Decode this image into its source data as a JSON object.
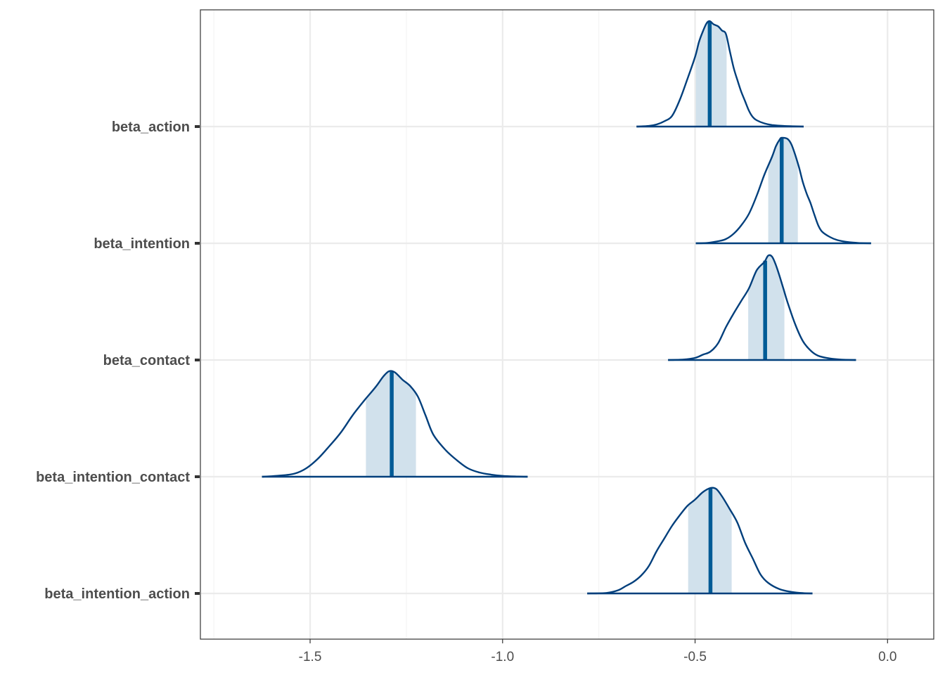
{
  "chart_data": {
    "type": "area",
    "chart_kind": "posterior-density-ridges",
    "title": "",
    "xlabel": "",
    "ylabel": "",
    "xlim": [
      -1.785,
      0.12
    ],
    "x_ticks": [
      -1.5,
      -1.0,
      -0.5,
      0.0
    ],
    "x_tick_labels": [
      "-1.5",
      "-1.0",
      "-0.5",
      "0.0"
    ],
    "grid": true,
    "legend": "none",
    "colors": {
      "line": "#013f7c",
      "interval_fill": "#d1e1ec",
      "median": "#005b96"
    },
    "series": [
      {
        "name": "beta_action",
        "median": -0.462,
        "interval": [
          -0.498,
          -0.418
        ],
        "density": [
          [
            -0.652,
            0.0
          ],
          [
            -0.62,
            0.006
          ],
          [
            -0.6,
            0.02
          ],
          [
            -0.58,
            0.05
          ],
          [
            -0.56,
            0.1
          ],
          [
            -0.54,
            0.25
          ],
          [
            -0.52,
            0.45
          ],
          [
            -0.5,
            0.66
          ],
          [
            -0.49,
            0.8
          ],
          [
            -0.48,
            0.9
          ],
          [
            -0.47,
            0.98
          ],
          [
            -0.462,
            1.0
          ],
          [
            -0.452,
            0.97
          ],
          [
            -0.44,
            0.95
          ],
          [
            -0.43,
            0.91
          ],
          [
            -0.42,
            0.88
          ],
          [
            -0.41,
            0.72
          ],
          [
            -0.4,
            0.56
          ],
          [
            -0.39,
            0.44
          ],
          [
            -0.38,
            0.33
          ],
          [
            -0.37,
            0.24
          ],
          [
            -0.36,
            0.15
          ],
          [
            -0.35,
            0.09
          ],
          [
            -0.34,
            0.06
          ],
          [
            -0.32,
            0.03
          ],
          [
            -0.3,
            0.015
          ],
          [
            -0.27,
            0.006
          ],
          [
            -0.218,
            0.0
          ]
        ]
      },
      {
        "name": "beta_intention",
        "median": -0.275,
        "interval": [
          -0.31,
          -0.233
        ],
        "density": [
          [
            -0.498,
            0.0
          ],
          [
            -0.47,
            0.003
          ],
          [
            -0.44,
            0.02
          ],
          [
            -0.42,
            0.04
          ],
          [
            -0.4,
            0.09
          ],
          [
            -0.38,
            0.17
          ],
          [
            -0.36,
            0.28
          ],
          [
            -0.34,
            0.45
          ],
          [
            -0.32,
            0.65
          ],
          [
            -0.3,
            0.82
          ],
          [
            -0.29,
            0.92
          ],
          [
            -0.28,
            0.985
          ],
          [
            -0.275,
            1.0
          ],
          [
            -0.26,
            0.99
          ],
          [
            -0.25,
            0.94
          ],
          [
            -0.24,
            0.84
          ],
          [
            -0.23,
            0.72
          ],
          [
            -0.22,
            0.58
          ],
          [
            -0.21,
            0.47
          ],
          [
            -0.2,
            0.38
          ],
          [
            -0.19,
            0.27
          ],
          [
            -0.18,
            0.17
          ],
          [
            -0.17,
            0.11
          ],
          [
            -0.15,
            0.06
          ],
          [
            -0.13,
            0.03
          ],
          [
            -0.1,
            0.01
          ],
          [
            -0.07,
            0.002
          ],
          [
            -0.043,
            0.0
          ]
        ]
      },
      {
        "name": "beta_contact",
        "median": -0.318,
        "interval": [
          -0.362,
          -0.268
        ],
        "density": [
          [
            -0.57,
            0.0
          ],
          [
            -0.53,
            0.005
          ],
          [
            -0.5,
            0.02
          ],
          [
            -0.48,
            0.05
          ],
          [
            -0.46,
            0.08
          ],
          [
            -0.44,
            0.16
          ],
          [
            -0.42,
            0.31
          ],
          [
            -0.4,
            0.44
          ],
          [
            -0.38,
            0.56
          ],
          [
            -0.36,
            0.68
          ],
          [
            -0.34,
            0.85
          ],
          [
            -0.32,
            0.93
          ],
          [
            -0.31,
            0.99
          ],
          [
            -0.3,
            0.98
          ],
          [
            -0.29,
            0.9
          ],
          [
            -0.28,
            0.79
          ],
          [
            -0.27,
            0.67
          ],
          [
            -0.26,
            0.55
          ],
          [
            -0.24,
            0.34
          ],
          [
            -0.22,
            0.18
          ],
          [
            -0.2,
            0.09
          ],
          [
            -0.18,
            0.04
          ],
          [
            -0.15,
            0.015
          ],
          [
            -0.12,
            0.004
          ],
          [
            -0.082,
            0.0
          ]
        ]
      },
      {
        "name": "beta_intention_contact",
        "median": -1.288,
        "interval": [
          -1.355,
          -1.225
        ],
        "density": [
          [
            -1.625,
            0.0
          ],
          [
            -1.58,
            0.01
          ],
          [
            -1.54,
            0.03
          ],
          [
            -1.51,
            0.08
          ],
          [
            -1.48,
            0.17
          ],
          [
            -1.45,
            0.29
          ],
          [
            -1.42,
            0.42
          ],
          [
            -1.39,
            0.58
          ],
          [
            -1.36,
            0.72
          ],
          [
            -1.33,
            0.85
          ],
          [
            -1.31,
            0.95
          ],
          [
            -1.295,
            1.0
          ],
          [
            -1.28,
            0.99
          ],
          [
            -1.26,
            0.92
          ],
          [
            -1.24,
            0.86
          ],
          [
            -1.22,
            0.76
          ],
          [
            -1.2,
            0.58
          ],
          [
            -1.18,
            0.4
          ],
          [
            -1.15,
            0.26
          ],
          [
            -1.12,
            0.16
          ],
          [
            -1.09,
            0.08
          ],
          [
            -1.06,
            0.04
          ],
          [
            -1.03,
            0.02
          ],
          [
            -1.0,
            0.008
          ],
          [
            -0.96,
            0.002
          ],
          [
            -0.935,
            0.0
          ]
        ]
      },
      {
        "name": "beta_intention_action",
        "median": -0.46,
        "interval": [
          -0.518,
          -0.405
        ],
        "density": [
          [
            -0.78,
            0.0
          ],
          [
            -0.73,
            0.005
          ],
          [
            -0.7,
            0.03
          ],
          [
            -0.68,
            0.07
          ],
          [
            -0.66,
            0.11
          ],
          [
            -0.64,
            0.17
          ],
          [
            -0.62,
            0.26
          ],
          [
            -0.6,
            0.4
          ],
          [
            -0.58,
            0.52
          ],
          [
            -0.56,
            0.64
          ],
          [
            -0.54,
            0.74
          ],
          [
            -0.52,
            0.83
          ],
          [
            -0.5,
            0.89
          ],
          [
            -0.48,
            0.96
          ],
          [
            -0.46,
            1.0
          ],
          [
            -0.445,
            0.99
          ],
          [
            -0.43,
            0.92
          ],
          [
            -0.41,
            0.8
          ],
          [
            -0.39,
            0.67
          ],
          [
            -0.37,
            0.48
          ],
          [
            -0.35,
            0.33
          ],
          [
            -0.33,
            0.18
          ],
          [
            -0.31,
            0.1
          ],
          [
            -0.28,
            0.04
          ],
          [
            -0.25,
            0.015
          ],
          [
            -0.22,
            0.003
          ],
          [
            -0.195,
            0.0
          ]
        ]
      }
    ]
  }
}
